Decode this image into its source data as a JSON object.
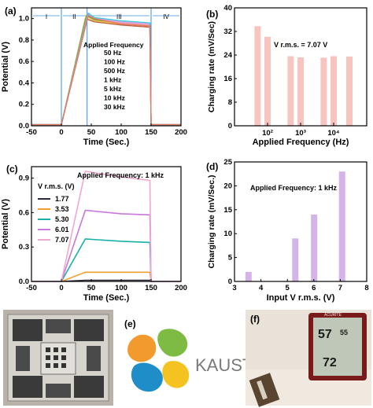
{
  "panels": {
    "a": {
      "letter": "(a)"
    },
    "b": {
      "letter": "(b)"
    },
    "c": {
      "letter": "(c)"
    },
    "d": {
      "letter": "(d)"
    },
    "e": {
      "letter": "(e)"
    },
    "f": {
      "letter": "(f)"
    }
  },
  "photos": {
    "e": {
      "logo_text": "KAUST"
    },
    "f": {
      "device_reading_top": "57",
      "device_reading_mid": "55",
      "device_reading_bottom": "72",
      "device_brand": "ACURITE"
    }
  },
  "chart_data": [
    {
      "panel": "a",
      "type": "line",
      "xlabel": "Time (Sec.)",
      "ylabel": "Potential (V)",
      "xlim": [
        -50,
        200
      ],
      "ylim": [
        0,
        1.1
      ],
      "xticks": [
        -50,
        0,
        50,
        100,
        150,
        200
      ],
      "yticks": [
        0.0,
        0.2,
        0.4,
        0.6,
        0.8,
        1.0
      ],
      "ytick_labels": [
        "0.0",
        "0.2",
        "0.4",
        "0.6",
        "0.8",
        "1.0"
      ],
      "regions": [
        "I",
        "II",
        "III",
        "IV"
      ],
      "region_bounds": [
        0,
        43,
        150
      ],
      "legend_title": "Applied Frequency",
      "series": [
        {
          "name": "50 Hz",
          "color": "#b85c3c",
          "points": [
            [
              -50,
              0.01
            ],
            [
              0,
              0.01
            ],
            [
              40,
              1.0
            ],
            [
              55,
              0.97
            ],
            [
              100,
              0.94
            ],
            [
              148,
              0.92
            ],
            [
              150,
              0.01
            ],
            [
              200,
              0.01
            ]
          ]
        },
        {
          "name": "100 Hz",
          "color": "#e8c84a",
          "points": [
            [
              -50,
              0.01
            ],
            [
              0,
              0.01
            ],
            [
              41,
              1.02
            ],
            [
              55,
              0.98
            ],
            [
              100,
              0.95
            ],
            [
              148,
              0.93
            ],
            [
              150,
              0.01
            ],
            [
              200,
              0.01
            ]
          ]
        },
        {
          "name": "500 Hz",
          "color": "#7c9c3a",
          "points": [
            [
              -50,
              0.01
            ],
            [
              0,
              0.01
            ],
            [
              42,
              1.03
            ],
            [
              55,
              0.99
            ],
            [
              100,
              0.96
            ],
            [
              148,
              0.94
            ],
            [
              150,
              0.01
            ],
            [
              200,
              0.01
            ]
          ]
        },
        {
          "name": "1 kHz",
          "color": "#f0a0b8",
          "points": [
            [
              -50,
              0.01
            ],
            [
              0,
              0.01
            ],
            [
              44,
              1.04
            ],
            [
              55,
              1.0
            ],
            [
              100,
              0.96
            ],
            [
              148,
              0.94
            ],
            [
              150,
              0.01
            ],
            [
              200,
              0.01
            ]
          ]
        },
        {
          "name": "5 kHz",
          "color": "#d8a0e0",
          "points": [
            [
              -50,
              0.01
            ],
            [
              0,
              0.01
            ],
            [
              44,
              1.04
            ],
            [
              55,
              1.0
            ],
            [
              100,
              0.97
            ],
            [
              148,
              0.95
            ],
            [
              150,
              0.01
            ],
            [
              200,
              0.01
            ]
          ]
        },
        {
          "name": "10 kHz",
          "color": "#3cc8e0",
          "points": [
            [
              -50,
              0.01
            ],
            [
              0,
              0.01
            ],
            [
              45,
              1.05
            ],
            [
              55,
              1.01
            ],
            [
              100,
              0.98
            ],
            [
              148,
              0.96
            ],
            [
              150,
              0.01
            ],
            [
              200,
              0.01
            ]
          ]
        },
        {
          "name": "30 kHz",
          "color": "#e87860",
          "points": [
            [
              -50,
              0.01
            ],
            [
              0,
              0.01
            ],
            [
              45,
              1.03
            ],
            [
              55,
              1.0
            ],
            [
              100,
              0.95
            ],
            [
              148,
              0.93
            ],
            [
              150,
              0.01
            ],
            [
              200,
              0.01
            ]
          ]
        }
      ]
    },
    {
      "panel": "b",
      "type": "bar",
      "xlabel": "Applied Frequency (Hz)",
      "ylabel": "Charging rate (mV/Sec)",
      "xscale": "log",
      "xlim": [
        10,
        100000
      ],
      "ylim": [
        0,
        40
      ],
      "yticks": [
        0,
        8,
        16,
        24,
        32,
        40
      ],
      "xtick_labels": [
        "10²",
        "10³",
        "10⁴"
      ],
      "annotation": "V r.m.s. = 7.07 V",
      "bar_color": "#f7c4c0",
      "x": [
        50,
        100,
        500,
        1000,
        5000,
        10000,
        30000
      ],
      "values": [
        33.8,
        30.2,
        23.6,
        23.2,
        23.1,
        23.6,
        23.5
      ]
    },
    {
      "panel": "c",
      "type": "line",
      "xlabel": "Time (Sec.)",
      "ylabel": "Potential (V)",
      "xlim": [
        -50,
        200
      ],
      "ylim": [
        0,
        1.0
      ],
      "xticks": [
        -50,
        0,
        50,
        100,
        150,
        200
      ],
      "yticks": [
        0.0,
        0.3,
        0.6,
        0.9
      ],
      "ytick_labels": [
        "0.0",
        "0.3",
        "0.6",
        "0.9"
      ],
      "annotation": "Applied Frequency: 1 kHz",
      "legend_title": "V r.m.s. (V)",
      "series": [
        {
          "name": "1.77",
          "color": "#2a2a3a",
          "points": [
            [
              -50,
              0.0
            ],
            [
              0,
              0.0
            ],
            [
              40,
              0.01
            ],
            [
              150,
              0.01
            ],
            [
              151,
              0.0
            ],
            [
              200,
              0.0
            ]
          ]
        },
        {
          "name": "3.53",
          "color": "#f0a030",
          "points": [
            [
              -50,
              0.0
            ],
            [
              0,
              0.0
            ],
            [
              40,
              0.08
            ],
            [
              100,
              0.08
            ],
            [
              148,
              0.08
            ],
            [
              150,
              0.0
            ],
            [
              200,
              0.0
            ]
          ]
        },
        {
          "name": "5.30",
          "color": "#18b0a8",
          "points": [
            [
              -50,
              0.0
            ],
            [
              0,
              0.0
            ],
            [
              40,
              0.37
            ],
            [
              100,
              0.35
            ],
            [
              148,
              0.34
            ],
            [
              150,
              0.0
            ],
            [
              200,
              0.0
            ]
          ]
        },
        {
          "name": "6.01",
          "color": "#c878d8",
          "points": [
            [
              -50,
              0.0
            ],
            [
              0,
              0.0
            ],
            [
              40,
              0.62
            ],
            [
              100,
              0.59
            ],
            [
              148,
              0.58
            ],
            [
              150,
              0.0
            ],
            [
              200,
              0.0
            ]
          ]
        },
        {
          "name": "7.07",
          "color": "#f0a8d0",
          "points": [
            [
              -50,
              0.0
            ],
            [
              0,
              0.0
            ],
            [
              40,
              0.96
            ],
            [
              100,
              0.91
            ],
            [
              148,
              0.88
            ],
            [
              150,
              0.0
            ],
            [
              200,
              0.0
            ]
          ]
        }
      ]
    },
    {
      "panel": "d",
      "type": "bar",
      "xlabel": "Input V r.m.s. (V)",
      "ylabel": "Charging rate (mV/Sec.)",
      "xlim": [
        3,
        8
      ],
      "ylim": [
        0,
        25
      ],
      "xticks": [
        3,
        4,
        5,
        6,
        7,
        8
      ],
      "yticks": [
        0,
        5,
        10,
        15,
        20,
        25
      ],
      "annotation": "Applied Frequency: 1 kHz",
      "bar_color": "#d4b4e8",
      "x": [
        3.53,
        5.3,
        6.01,
        7.07
      ],
      "values": [
        2.0,
        9.0,
        14.0,
        23.0
      ]
    }
  ]
}
